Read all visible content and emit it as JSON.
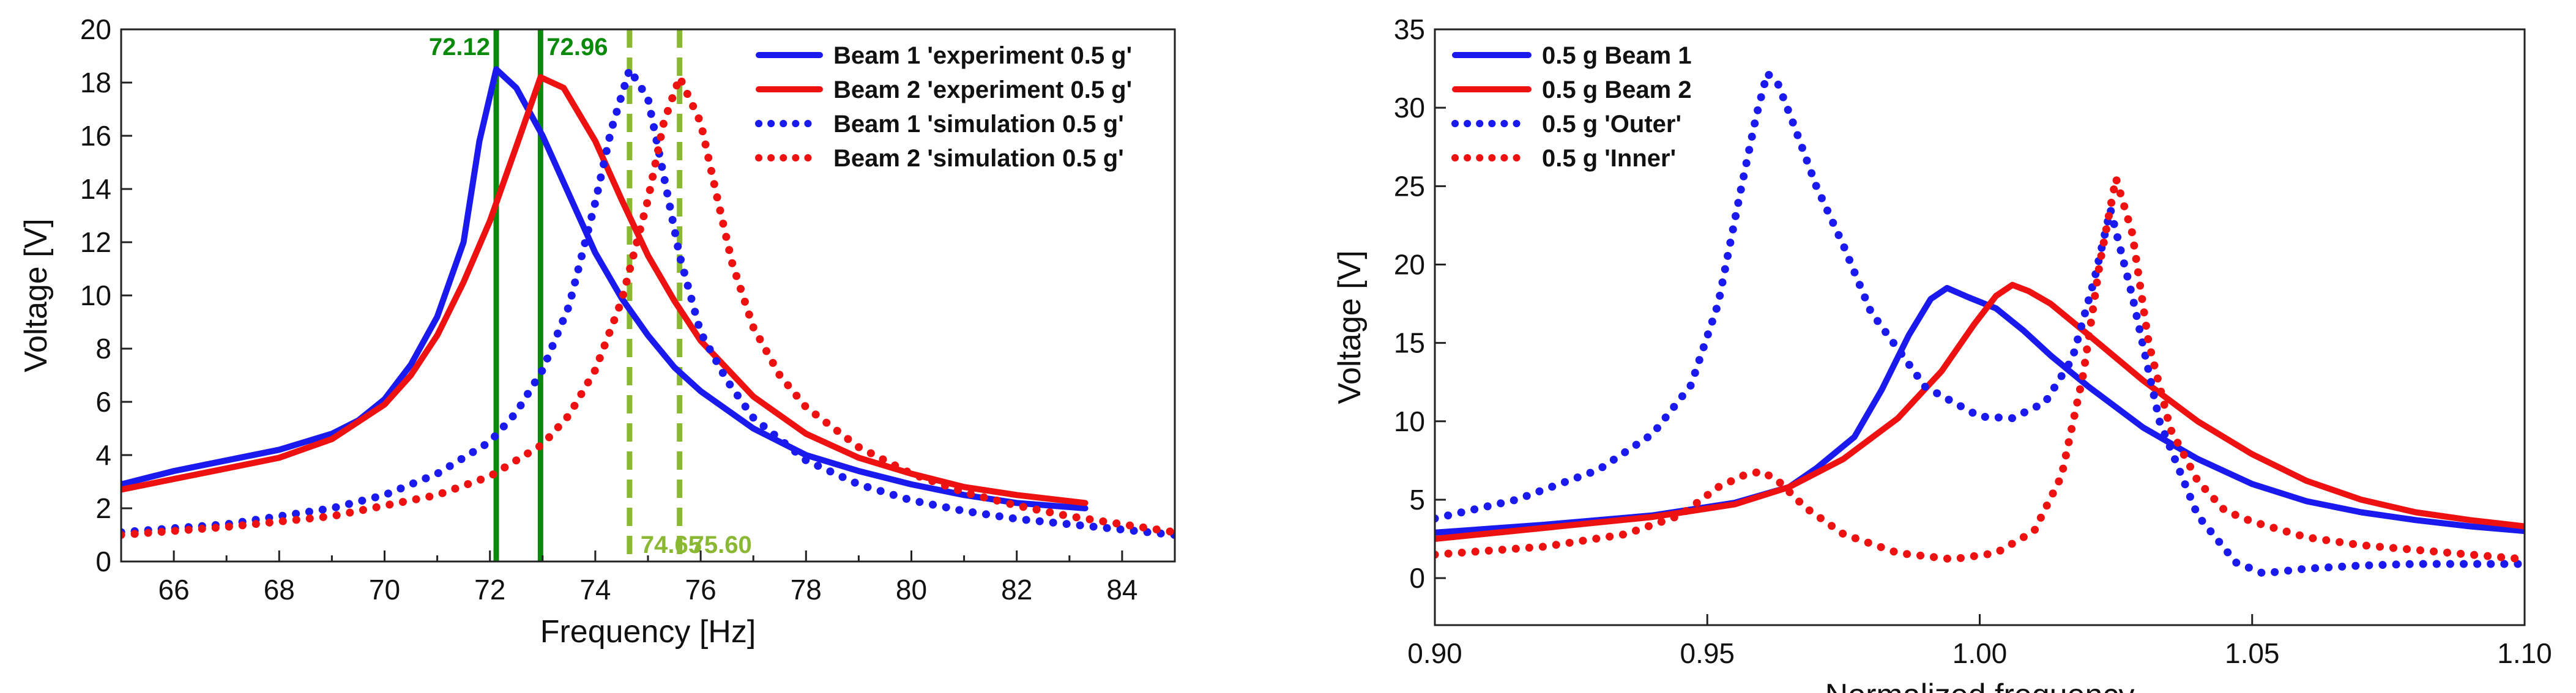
{
  "colors": {
    "blue": "#1a1aee",
    "red": "#ee1111",
    "green": "#0a8a0a",
    "light_green": "#8ab833",
    "axis": "#222222"
  },
  "chart_data": [
    {
      "type": "line",
      "id": "left",
      "xlabel": "Frequency [Hz]",
      "ylabel": "Voltage [V]",
      "xlim": [
        65,
        85
      ],
      "ylim": [
        0,
        20
      ],
      "xticks": [
        66,
        68,
        70,
        72,
        74,
        76,
        78,
        80,
        82,
        84
      ],
      "yticks": [
        0,
        2,
        4,
        6,
        8,
        10,
        12,
        14,
        16,
        18,
        20
      ],
      "xtick_labels": [
        "66",
        "68",
        "70",
        "72",
        "74",
        "76",
        "78",
        "80",
        "82",
        "84"
      ],
      "ytick_labels": [
        "0",
        "2",
        "4",
        "6",
        "8",
        "10",
        "12",
        "14",
        "16",
        "18",
        "20"
      ],
      "legend_position": "top-right",
      "series": [
        {
          "name": "Beam 1 'experiment 0.5 g'",
          "color": "blue",
          "style": "solid",
          "x": [
            65,
            66,
            67,
            68,
            69,
            69.5,
            70,
            70.5,
            71,
            71.5,
            71.8,
            72.12,
            72.5,
            73,
            73.5,
            74,
            74.5,
            75,
            75.5,
            76,
            77,
            78,
            79,
            80,
            81,
            82,
            83.3
          ],
          "y": [
            2.9,
            3.4,
            3.8,
            4.2,
            4.8,
            5.3,
            6.1,
            7.4,
            9.2,
            12.0,
            15.8,
            18.5,
            17.8,
            16.0,
            13.8,
            11.6,
            9.9,
            8.5,
            7.3,
            6.4,
            5.0,
            4.0,
            3.4,
            2.9,
            2.5,
            2.2,
            2.0
          ]
        },
        {
          "name": "Beam 2 'experiment 0.5 g'",
          "color": "red",
          "style": "solid",
          "x": [
            65,
            66,
            67,
            68,
            69,
            70,
            70.5,
            71,
            71.5,
            72,
            72.5,
            72.96,
            73.4,
            74,
            74.5,
            75,
            75.5,
            76,
            77,
            78,
            79,
            80,
            81,
            82,
            83.3
          ],
          "y": [
            2.7,
            3.1,
            3.5,
            3.9,
            4.6,
            5.9,
            7.0,
            8.5,
            10.5,
            12.8,
            15.6,
            18.2,
            17.8,
            15.8,
            13.6,
            11.5,
            9.8,
            8.3,
            6.2,
            4.8,
            3.9,
            3.3,
            2.8,
            2.5,
            2.2
          ]
        },
        {
          "name": "Beam 1 'simulation 0.5 g'",
          "color": "blue",
          "style": "dotted",
          "x": [
            65,
            67,
            69,
            70,
            71,
            72,
            72.5,
            73,
            73.5,
            74,
            74.3,
            74.65,
            75,
            75.3,
            75.6,
            76,
            76.5,
            77,
            78,
            79,
            80,
            81,
            82,
            83,
            84,
            85
          ],
          "y": [
            1.1,
            1.4,
            2.0,
            2.5,
            3.3,
            4.5,
            5.6,
            7.2,
            9.6,
            13.5,
            16.2,
            18.5,
            17.4,
            14.5,
            11.5,
            8.6,
            6.8,
            5.4,
            3.8,
            2.9,
            2.3,
            1.9,
            1.6,
            1.4,
            1.2,
            1.0
          ]
        },
        {
          "name": "Beam 2 'simulation 0.5 g'",
          "color": "red",
          "style": "dotted",
          "x": [
            65,
            67,
            69,
            70,
            71,
            72,
            73,
            73.5,
            74,
            74.5,
            75,
            75.3,
            75.6,
            76,
            76.3,
            76.6,
            77,
            77.5,
            78,
            79,
            80,
            81,
            82,
            83,
            84,
            85
          ],
          "y": [
            1.0,
            1.3,
            1.7,
            2.1,
            2.5,
            3.2,
            4.4,
            5.5,
            7.2,
            9.8,
            13.6,
            16.5,
            18.2,
            16.5,
            13.8,
            11.2,
            8.8,
            7.0,
            5.8,
            4.3,
            3.3,
            2.6,
            2.1,
            1.7,
            1.4,
            1.1
          ]
        }
      ],
      "vlines": [
        {
          "x": 72.12,
          "label": "72.12",
          "color": "green",
          "style": "solid",
          "label_pos": "top-left"
        },
        {
          "x": 72.96,
          "label": "72.96",
          "color": "green",
          "style": "solid",
          "label_pos": "top-right"
        },
        {
          "x": 74.65,
          "label": "74.65",
          "color": "light_green",
          "style": "dashed",
          "label_pos": "bottom-right"
        },
        {
          "x": 75.6,
          "label": "75.60",
          "color": "light_green",
          "style": "dashed",
          "label_pos": "bottom-right"
        }
      ]
    },
    {
      "type": "line",
      "id": "right",
      "xlabel": "Normalized frequency",
      "ylabel": "Voltage [V]",
      "xlim": [
        0.9,
        1.1
      ],
      "ylim": [
        -3,
        35
      ],
      "xticks": [
        0.9,
        0.95,
        1.0,
        1.05,
        1.1
      ],
      "yticks": [
        0,
        5,
        10,
        15,
        20,
        25,
        30,
        35
      ],
      "xtick_labels": [
        "0.90",
        "0.95",
        "1.00",
        "1.05",
        "1.10"
      ],
      "ytick_labels": [
        "0",
        "5",
        "10",
        "15",
        "20",
        "25",
        "30",
        "35"
      ],
      "legend_position": "top-left",
      "series": [
        {
          "name": "0.5 g  Beam 1",
          "color": "blue",
          "style": "solid",
          "x": [
            0.9,
            0.92,
            0.94,
            0.955,
            0.965,
            0.97,
            0.977,
            0.982,
            0.987,
            0.991,
            0.994,
            0.998,
            1.003,
            1.008,
            1.013,
            1.02,
            1.03,
            1.04,
            1.05,
            1.06,
            1.07,
            1.08,
            1.09,
            1.1
          ],
          "y": [
            2.9,
            3.4,
            4.0,
            4.8,
            5.8,
            7.0,
            9.0,
            12.0,
            15.5,
            17.8,
            18.5,
            17.9,
            17.2,
            15.8,
            14.2,
            12.2,
            9.6,
            7.6,
            6.0,
            4.9,
            4.2,
            3.7,
            3.3,
            3.0
          ]
        },
        {
          "name": "0.5 g  Beam 2",
          "color": "red",
          "style": "solid",
          "x": [
            0.9,
            0.92,
            0.94,
            0.955,
            0.965,
            0.975,
            0.985,
            0.993,
            0.999,
            1.003,
            1.006,
            1.009,
            1.013,
            1.02,
            1.03,
            1.04,
            1.05,
            1.06,
            1.07,
            1.08,
            1.09,
            1.1
          ],
          "y": [
            2.5,
            3.2,
            3.9,
            4.7,
            5.8,
            7.6,
            10.2,
            13.2,
            16.2,
            18.0,
            18.7,
            18.3,
            17.5,
            15.5,
            12.6,
            10.0,
            7.9,
            6.2,
            5.0,
            4.2,
            3.7,
            3.3
          ]
        },
        {
          "name": "0.5 g  'Outer'",
          "color": "blue",
          "style": "dotted",
          "x": [
            0.9,
            0.915,
            0.93,
            0.94,
            0.947,
            0.952,
            0.956,
            0.959,
            0.961,
            0.963,
            0.966,
            0.97,
            0.975,
            0.98,
            0.99,
            1.0,
            1.006,
            1.012,
            1.017,
            1.021,
            1.024,
            1.028,
            1.033,
            1.04,
            1.047,
            1.052,
            1.06,
            1.07,
            1.08,
            1.1
          ],
          "y": [
            3.8,
            5.0,
            6.9,
            9.2,
            12.3,
            17.5,
            24.5,
            29.5,
            32.2,
            31.5,
            28.8,
            25.0,
            21.2,
            17.0,
            12.2,
            10.3,
            10.2,
            11.2,
            14.0,
            19.0,
            23.5,
            18.0,
            10.0,
            4.0,
            1.0,
            0.3,
            0.6,
            0.8,
            0.9,
            0.9
          ]
        },
        {
          "name": "0.5 g  'Inner'",
          "color": "red",
          "style": "dotted",
          "x": [
            0.9,
            0.92,
            0.935,
            0.945,
            0.952,
            0.957,
            0.96,
            0.963,
            0.968,
            0.975,
            0.985,
            0.995,
            1.003,
            1.01,
            1.015,
            1.019,
            1.022,
            1.025,
            1.028,
            1.031,
            1.035,
            1.04,
            1.045,
            1.05,
            1.06,
            1.07,
            1.08,
            1.09,
            1.1
          ],
          "y": [
            1.5,
            2.0,
            2.8,
            4.0,
            5.8,
            6.6,
            6.8,
            6.2,
            4.5,
            2.8,
            1.6,
            1.2,
            1.6,
            3.0,
            6.5,
            13.0,
            20.0,
            25.5,
            22.0,
            15.0,
            9.5,
            6.2,
            4.3,
            3.6,
            2.6,
            2.1,
            1.8,
            1.5,
            1.2
          ]
        }
      ]
    }
  ]
}
